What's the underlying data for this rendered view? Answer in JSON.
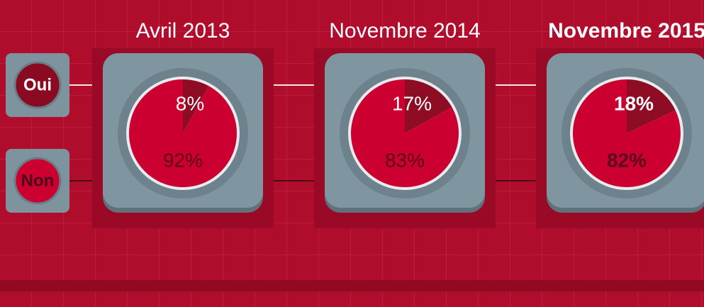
{
  "legend": {
    "labels": [
      "Oui",
      "Non"
    ]
  },
  "chart_data": [
    {
      "type": "pie",
      "title": "Avril 2013",
      "values": [
        8,
        92
      ],
      "value_labels": [
        "8%",
        "92%"
      ],
      "colors": [
        "#8e0c24",
        "#cc0030"
      ],
      "bold": false
    },
    {
      "type": "pie",
      "title": "Novembre 2014",
      "values": [
        17,
        83
      ],
      "value_labels": [
        "17%",
        "83%"
      ],
      "colors": [
        "#8e0c24",
        "#cc0030"
      ],
      "bold": false
    },
    {
      "type": "pie",
      "title": "Novembre 2015",
      "values": [
        18,
        82
      ],
      "value_labels": [
        "18%",
        "82%"
      ],
      "colors": [
        "#8e0c24",
        "#cc0030"
      ],
      "bold": true
    }
  ]
}
